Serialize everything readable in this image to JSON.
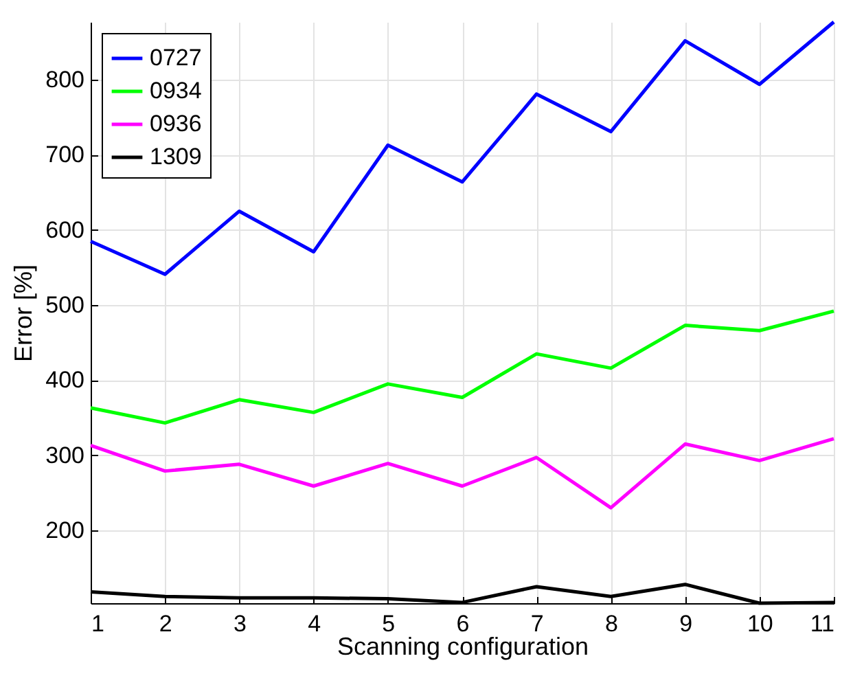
{
  "chart_data": {
    "type": "line",
    "xlabel": "Scanning configuration",
    "ylabel": "Error [%]",
    "x": [
      1,
      2,
      3,
      4,
      5,
      6,
      7,
      8,
      9,
      10,
      11
    ],
    "series": [
      {
        "name": "0727",
        "color": "#0000ff",
        "values": [
          585,
          541,
          625,
          571,
          713,
          664,
          781,
          731,
          852,
          794,
          877
        ]
      },
      {
        "name": "0934",
        "color": "#00ff00",
        "values": [
          363,
          343,
          374,
          357,
          395,
          377,
          435,
          416,
          473,
          466,
          492
        ]
      },
      {
        "name": "0936",
        "color": "#ff00ff",
        "values": [
          313,
          279,
          288,
          259,
          289,
          259,
          297,
          230,
          315,
          293,
          322
        ]
      },
      {
        "name": "1309",
        "color": "#000000",
        "values": [
          118,
          112,
          110,
          110,
          109,
          104,
          125,
          112,
          128,
          103,
          104
        ]
      }
    ],
    "xlim": [
      1,
      11
    ],
    "xticks": [
      1,
      2,
      3,
      4,
      5,
      6,
      7,
      8,
      9,
      10,
      11
    ],
    "ylim": [
      103,
      877
    ],
    "yticks": [
      200,
      300,
      400,
      500,
      600,
      700,
      800
    ],
    "grid": true,
    "legend": "top left",
    "marker": "none",
    "line_style": "solid"
  }
}
